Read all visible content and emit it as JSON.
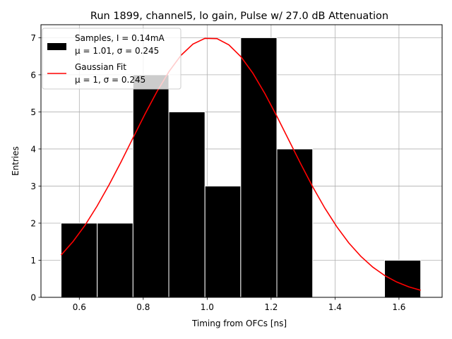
{
  "chart_data": {
    "type": "bar",
    "title": "Run 1899, channel5, lo gain, Pulse w/ 27.0 dB Attenuation",
    "xlabel": "Timing from OFCs [ns]",
    "ylabel": "Entries",
    "xlim": [
      0.48,
      1.735
    ],
    "ylim": [
      0,
      7.35
    ],
    "xticks": [
      "0.6",
      "0.8",
      "1.0",
      "1.2",
      "1.4",
      "1.6"
    ],
    "yticks": [
      "0",
      "1",
      "2",
      "3",
      "4",
      "5",
      "6",
      "7"
    ],
    "grid": true,
    "legend_position": "top-left",
    "histogram": {
      "name": "Samples, I = 0.14mA",
      "stats": "μ = 1.01, σ = 0.245",
      "color": "#000000",
      "bins": [
        {
          "x0": 0.543,
          "x1": 0.656,
          "count": 2
        },
        {
          "x0": 0.656,
          "x1": 0.768,
          "count": 2
        },
        {
          "x0": 0.768,
          "x1": 0.88,
          "count": 6
        },
        {
          "x0": 0.88,
          "x1": 0.993,
          "count": 5
        },
        {
          "x0": 0.993,
          "x1": 1.105,
          "count": 3
        },
        {
          "x0": 1.105,
          "x1": 1.218,
          "count": 7
        },
        {
          "x0": 1.218,
          "x1": 1.33,
          "count": 4
        },
        {
          "x0": 1.33,
          "x1": 1.443,
          "count": 0
        },
        {
          "x0": 1.443,
          "x1": 1.555,
          "count": 0
        },
        {
          "x0": 1.555,
          "x1": 1.668,
          "count": 1
        }
      ]
    },
    "fit": {
      "name": "Gaussian Fit",
      "stats": "μ = 1, σ = 0.245",
      "color": "#ff0000",
      "amplitude": 7.0,
      "mean": 1.01,
      "sigma": 0.245,
      "x_range": [
        0.543,
        1.668
      ]
    }
  }
}
